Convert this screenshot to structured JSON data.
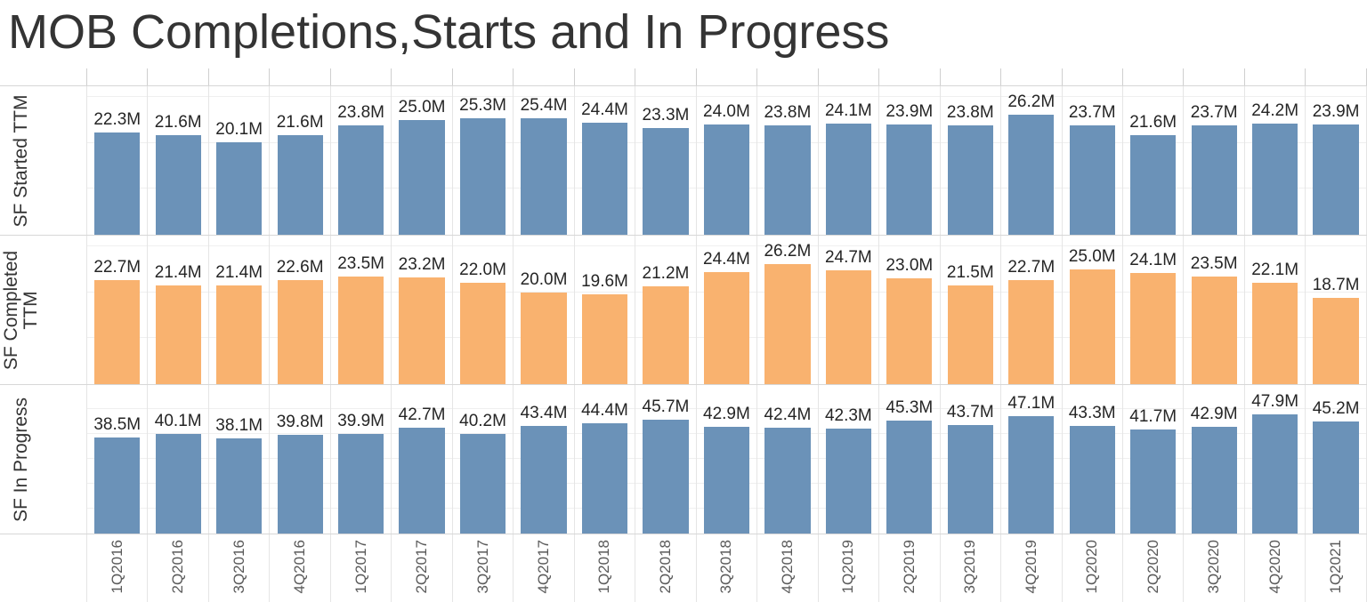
{
  "title": "MOB Completions,Starts and In Progress",
  "colors": {
    "bar_blue": "#6b92b8",
    "bar_orange": "#f9b26f",
    "value_label": "#252525",
    "axis_label": "#5a5a5a",
    "row_label": "#333333",
    "title_text": "#343434"
  },
  "chart_data": {
    "type": "bar",
    "title": "MOB Completions,Starts and In Progress",
    "layout": "3 stacked row panels, shared x-axis, value labels above bars, y-axes hidden, gridlines every 10M",
    "value_suffix": "M",
    "grid_interval": 10,
    "legend": "none",
    "categories": [
      "1Q2016",
      "2Q2016",
      "3Q2016",
      "4Q2016",
      "1Q2017",
      "2Q2017",
      "3Q2017",
      "4Q2017",
      "1Q2018",
      "2Q2018",
      "3Q2018",
      "4Q2018",
      "1Q2019",
      "2Q2019",
      "3Q2019",
      "4Q2019",
      "1Q2020",
      "2Q2020",
      "3Q2020",
      "4Q2020",
      "1Q2021"
    ],
    "panels": [
      {
        "label": "SF Started TTM",
        "color": "#6b92b8",
        "ylim": [
          0,
          32.3
        ],
        "values": [
          22.3,
          21.6,
          20.1,
          21.6,
          23.8,
          25.0,
          25.3,
          25.4,
          24.4,
          23.3,
          24.0,
          23.8,
          24.1,
          23.9,
          23.8,
          26.2,
          23.7,
          21.6,
          23.7,
          24.2,
          23.9
        ]
      },
      {
        "label": "SF Completed TTM",
        "color": "#f9b26f",
        "ylim": [
          0,
          32.3
        ],
        "values": [
          22.7,
          21.4,
          21.4,
          22.6,
          23.5,
          23.2,
          22.0,
          20.0,
          19.6,
          21.2,
          24.4,
          26.2,
          24.7,
          23.0,
          21.5,
          22.7,
          25.0,
          24.1,
          23.5,
          22.1,
          18.7
        ]
      },
      {
        "label": "SF In Progress",
        "color": "#6b92b8",
        "ylim": [
          0,
          59.7
        ],
        "values": [
          38.5,
          40.1,
          38.1,
          39.8,
          39.9,
          42.7,
          40.2,
          43.4,
          44.4,
          45.7,
          42.9,
          42.4,
          42.3,
          45.3,
          43.7,
          47.1,
          43.3,
          41.7,
          42.9,
          47.9,
          45.2
        ]
      }
    ]
  }
}
